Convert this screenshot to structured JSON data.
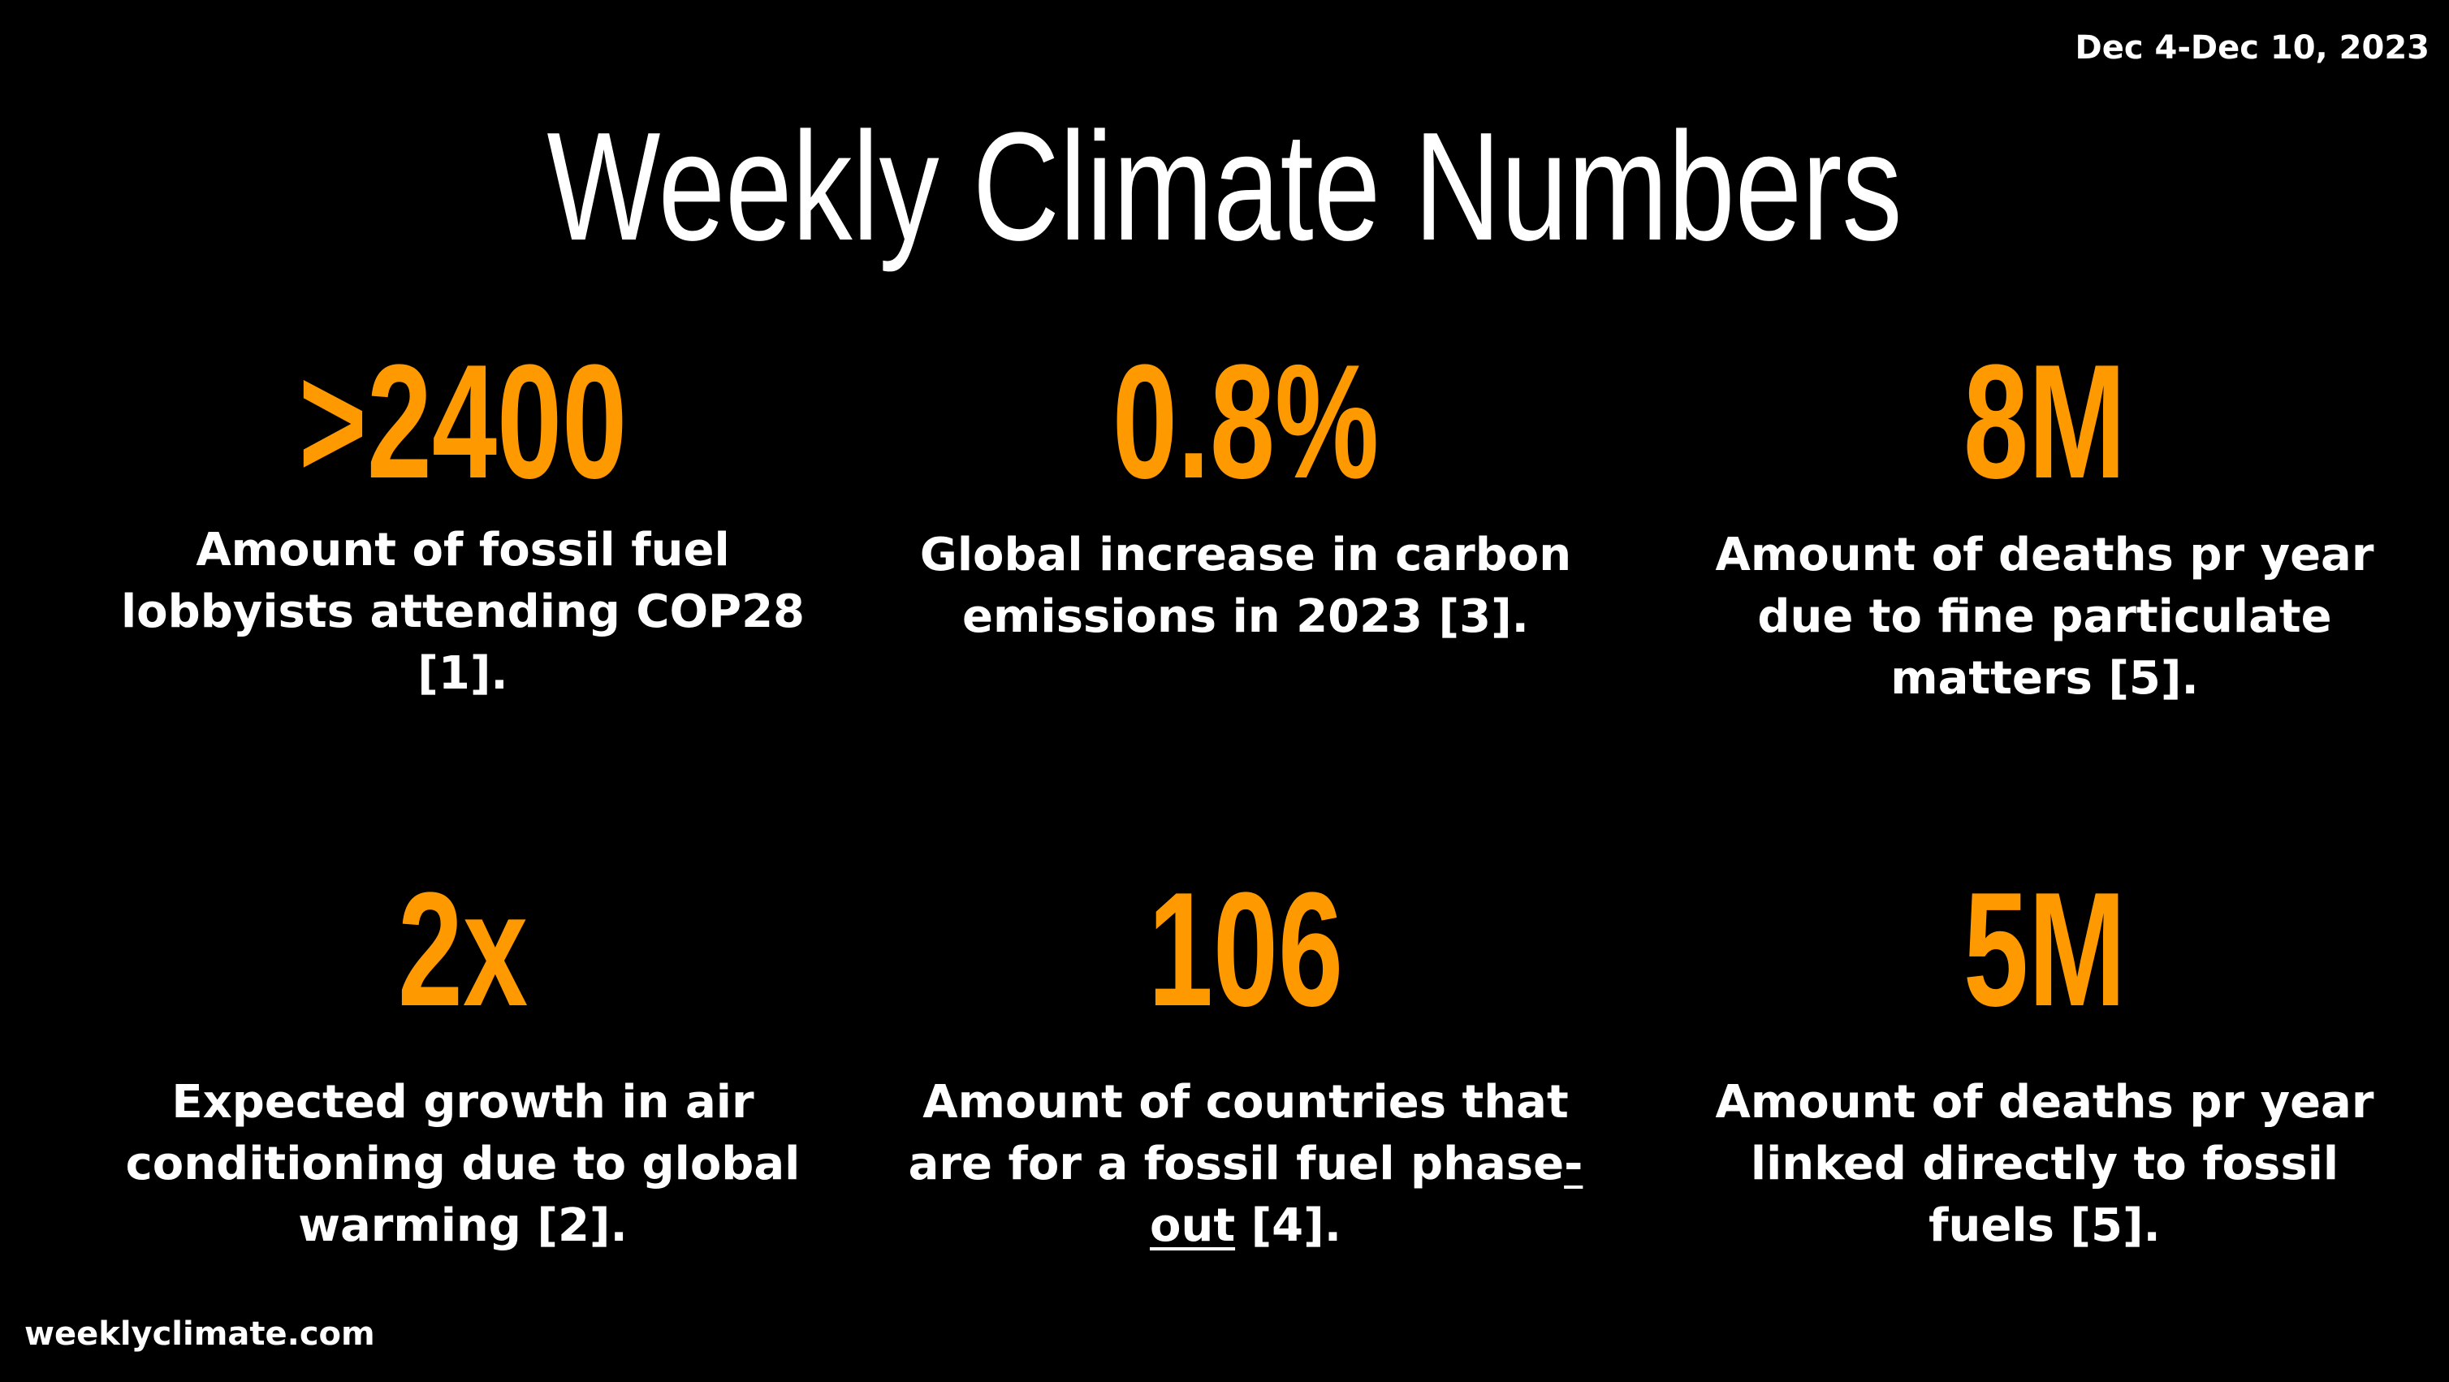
{
  "header": {
    "date_range": "Dec 4-Dec 10, 2023",
    "title": "Weekly Climate Numbers"
  },
  "stats": [
    {
      "value": ">2400",
      "description": "Amount of fossil fuel lobbyists attending COP28 [1]."
    },
    {
      "value": "0.8%",
      "description": "Global increase in carbon emissions in 2023 [3]."
    },
    {
      "value": "8M",
      "description": "Amount of deaths pr year due to fine particulate matters [5]."
    },
    {
      "value": "2x",
      "description": "Expected growth in air conditioning due to global warming [2]."
    },
    {
      "value": "106",
      "description_before_link": "Amount of countries that are for a fossil fuel phase",
      "description_link": "-out",
      "description_after_link": " [4]."
    },
    {
      "value": "5M",
      "description": "Amount of deaths pr year linked directly to fossil fuels [5]."
    }
  ],
  "footer": {
    "site": "weeklyclimate.com"
  },
  "colors": {
    "background": "#000000",
    "accent": "#ff9900",
    "text": "#ffffff"
  }
}
